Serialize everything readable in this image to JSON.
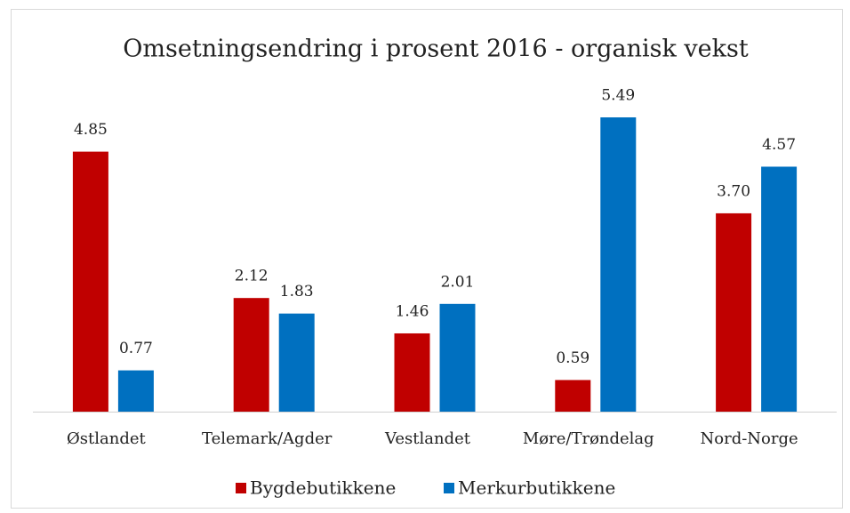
{
  "chart_data": {
    "type": "bar",
    "title": "Omsetningsendring i prosent 2016 - organisk vekst",
    "categories": [
      "Østlandet",
      "Telemark/Agder",
      "Vestlandet",
      "Møre/Trøndelag",
      "Nord-Norge"
    ],
    "series": [
      {
        "name": "Bygdebutikkene",
        "color": "#c00000",
        "values": [
          4.85,
          2.12,
          1.46,
          0.59,
          3.7
        ],
        "value_labels": [
          "4.85",
          "2.12",
          "1.46",
          "0.59",
          "3.70"
        ]
      },
      {
        "name": "Merkurbutikkene",
        "color": "#0070c0",
        "values": [
          0.77,
          1.83,
          2.01,
          5.49,
          4.57
        ],
        "value_labels": [
          "0.77",
          "1.83",
          "2.01",
          "5.49",
          "4.57"
        ]
      }
    ],
    "legend": "bottom"
  }
}
